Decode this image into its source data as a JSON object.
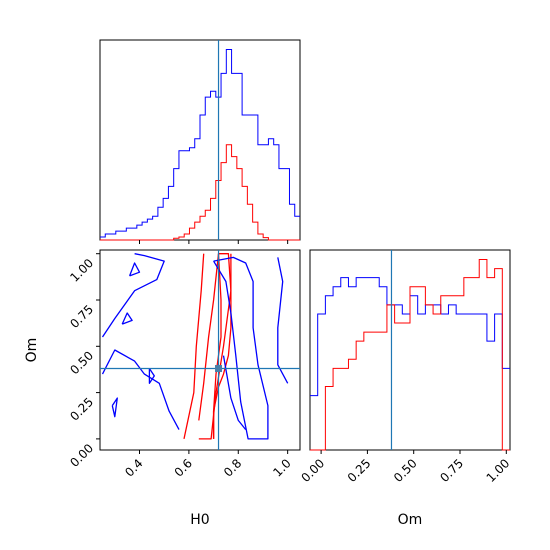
{
  "chart_data": {
    "type": "corner",
    "parameters": [
      "H0",
      "Om"
    ],
    "truth": {
      "H0": 0.72,
      "Om": 0.38
    },
    "colors": {
      "series_a": "#0000ff",
      "series_b": "#ff0000",
      "truth": "#1f77b4"
    },
    "axes": {
      "h0_ticks": [
        "0.4",
        "0.6",
        "0.8",
        "1.0"
      ],
      "om_ticks": [
        "0.00",
        "0.25",
        "0.50",
        "0.75",
        "1.00"
      ],
      "h0_range": [
        0.24,
        1.05
      ],
      "om_range": [
        -0.06,
        1.02
      ],
      "xlabel_h0": "H0",
      "xlabel_om": "Om",
      "ylabel_om": "Om"
    },
    "hist_h0": {
      "range": [
        0.24,
        1.05
      ],
      "series": [
        {
          "color": "blue",
          "values": [
            0.5,
            1,
            1,
            1.5,
            1.5,
            2,
            2,
            2.5,
            3,
            3.5,
            4,
            5.5,
            7,
            9,
            12,
            15,
            15,
            15.5,
            17,
            21,
            24,
            25,
            24,
            28,
            32,
            28,
            28,
            21,
            21,
            21,
            16,
            16,
            17,
            16,
            12,
            12,
            6,
            4
          ]
        },
        {
          "color": "red",
          "values": [
            0,
            0,
            0,
            0,
            0,
            0,
            0,
            0,
            0,
            0,
            0,
            0,
            0,
            0,
            0.3,
            0.5,
            1,
            2,
            3,
            4,
            5,
            7,
            10,
            13,
            16,
            14,
            12,
            9,
            6,
            3,
            1,
            0.4,
            0,
            0,
            0,
            0,
            0,
            0
          ]
        }
      ]
    },
    "hist_om": {
      "range": [
        -0.06,
        1.02
      ],
      "series": [
        {
          "color": "blue",
          "values": [
            6,
            15,
            17,
            18,
            19,
            18,
            19,
            19,
            19,
            18,
            16,
            16,
            15,
            17,
            15,
            16,
            16,
            15,
            16,
            15,
            15,
            15,
            15,
            12,
            15,
            9
          ]
        },
        {
          "color": "red",
          "values": [
            0,
            0,
            7,
            9,
            9,
            10,
            12,
            13,
            13,
            13,
            16,
            14,
            14,
            18,
            18,
            16,
            15,
            17,
            17,
            17,
            19,
            19,
            21,
            19,
            20,
            0
          ]
        }
      ]
    },
    "contour_levels": [
      {
        "color": "red",
        "paths": [
          [
            [
              0.64,
              0.0
            ],
            [
              0.69,
              0.0
            ],
            [
              0.71,
              0.25
            ],
            [
              0.74,
              0.5
            ],
            [
              0.77,
              0.8
            ],
            [
              0.76,
              1.0
            ],
            [
              0.72,
              1.0
            ],
            [
              0.7,
              0.75
            ],
            [
              0.68,
              0.55
            ],
            [
              0.66,
              0.3
            ],
            [
              0.64,
              0.1
            ]
          ],
          [
            [
              0.58,
              0.0
            ],
            [
              0.62,
              0.25
            ],
            [
              0.63,
              0.5
            ],
            [
              0.65,
              0.8
            ],
            [
              0.66,
              1.0
            ]
          ],
          [
            [
              0.72,
              1.0
            ],
            [
              0.73,
              0.75
            ],
            [
              0.73,
              0.55
            ],
            [
              0.71,
              0.35
            ],
            [
              0.7,
              0.15
            ],
            [
              0.7,
              0.0
            ]
          ],
          [
            [
              0.77,
              1.0
            ],
            [
              0.77,
              0.75
            ],
            [
              0.77,
              0.6
            ],
            [
              0.76,
              0.45
            ],
            [
              0.74,
              0.35
            ],
            [
              0.72,
              0.28
            ],
            [
              0.7,
              0.15
            ],
            [
              0.7,
              0.0
            ]
          ]
        ]
      },
      {
        "color": "blue",
        "paths": [
          [
            [
              0.7,
              0.96
            ],
            [
              0.78,
              0.98
            ],
            [
              0.83,
              0.95
            ],
            [
              0.86,
              0.85
            ],
            [
              0.86,
              0.6
            ],
            [
              0.88,
              0.4
            ],
            [
              0.92,
              0.18
            ],
            [
              0.92,
              0.0
            ],
            [
              0.84,
              0.0
            ],
            [
              0.81,
              0.2
            ],
            [
              0.79,
              0.45
            ],
            [
              0.77,
              0.68
            ],
            [
              0.75,
              0.85
            ],
            [
              0.7,
              0.96
            ]
          ],
          [
            [
              0.74,
              0.45
            ],
            [
              0.77,
              0.22
            ],
            [
              0.8,
              0.1
            ],
            [
              0.83,
              0.05
            ]
          ],
          [
            [
              0.96,
              0.98
            ],
            [
              0.98,
              0.85
            ],
            [
              0.96,
              0.6
            ],
            [
              0.96,
              0.4
            ],
            [
              1.0,
              0.3
            ]
          ],
          [
            [
              0.25,
              0.55
            ],
            [
              0.3,
              0.65
            ],
            [
              0.38,
              0.8
            ],
            [
              0.47,
              0.86
            ],
            [
              0.5,
              0.96
            ],
            [
              0.42,
              0.99
            ],
            [
              0.38,
              1.0
            ]
          ],
          [
            [
              0.25,
              0.35
            ],
            [
              0.3,
              0.48
            ],
            [
              0.38,
              0.42
            ],
            [
              0.42,
              0.35
            ],
            [
              0.48,
              0.3
            ],
            [
              0.52,
              0.15
            ],
            [
              0.56,
              0.05
            ]
          ],
          [
            [
              0.36,
              0.88
            ],
            [
              0.4,
              0.9
            ],
            [
              0.38,
              0.95
            ],
            [
              0.36,
              0.88
            ]
          ],
          [
            [
              0.33,
              0.62
            ],
            [
              0.37,
              0.64
            ],
            [
              0.35,
              0.68
            ],
            [
              0.33,
              0.62
            ]
          ],
          [
            [
              0.44,
              0.38
            ],
            [
              0.46,
              0.34
            ],
            [
              0.44,
              0.3
            ],
            [
              0.44,
              0.38
            ]
          ],
          [
            [
              0.29,
              0.18
            ],
            [
              0.31,
              0.22
            ],
            [
              0.3,
              0.12
            ],
            [
              0.29,
              0.18
            ]
          ]
        ]
      }
    ]
  }
}
